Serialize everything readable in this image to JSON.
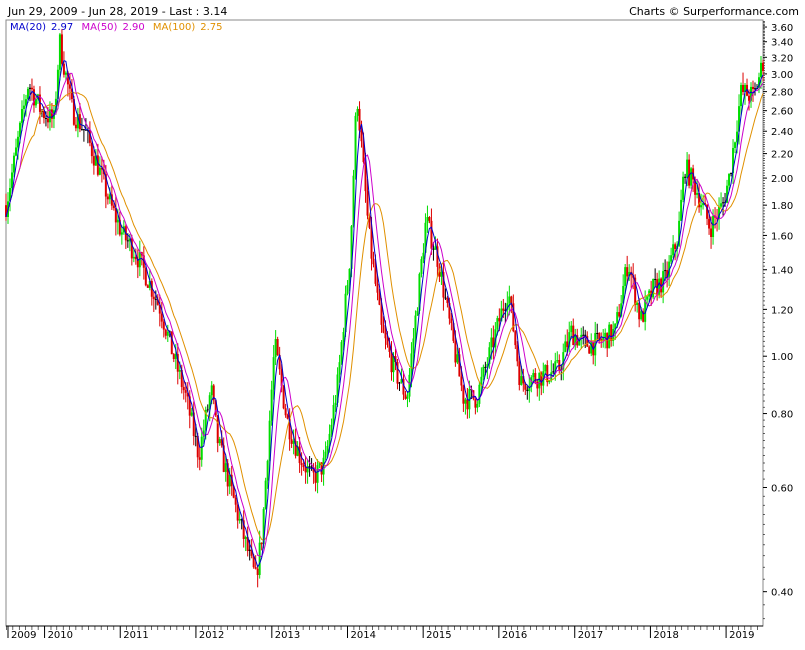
{
  "header": {
    "range_text": "Jun 29, 2009 - Jun 28, 2019 - Last : 3.14",
    "credit": "Charts © Surperformance.com"
  },
  "legend": [
    {
      "label": "MA(20)",
      "value": "2.97",
      "color": "#0000cc"
    },
    {
      "label": "MA(50)",
      "value": "2.90",
      "color": "#cc00cc"
    },
    {
      "label": "MA(100)",
      "value": "2.75",
      "color": "#e09000"
    }
  ],
  "chart_data": {
    "type": "candlestick",
    "title": "",
    "xlabel": "",
    "ylabel": "",
    "y_scale": "log",
    "ylim": [
      0.35,
      3.7
    ],
    "y_ticks": [
      0.4,
      0.6,
      0.8,
      1.0,
      1.2,
      1.4,
      1.6,
      1.8,
      2.0,
      2.2,
      2.4,
      2.6,
      2.8,
      3.0,
      3.2,
      3.4,
      3.6
    ],
    "y_tick_labels": [
      "0.40",
      "0.60",
      "0.80",
      "1.00",
      "1.20",
      "1.40",
      "1.60",
      "1.80",
      "2.00",
      "2.20",
      "2.40",
      "2.60",
      "2.80",
      "3.00",
      "3.20",
      "3.40",
      "3.60"
    ],
    "x_ticks": [
      "2009",
      "2010",
      "2011",
      "2012",
      "2013",
      "2014",
      "2015",
      "2016",
      "2017",
      "2018",
      "2019"
    ],
    "x_range": [
      "2009-06-29",
      "2019-06-28"
    ],
    "last": 3.14,
    "colors": {
      "up": "#00dd00",
      "down": "#dd0000",
      "neutral": "#000000",
      "grid": "#dddddd"
    },
    "price_path": [
      [
        "2009-06",
        1.8
      ],
      [
        "2009-08",
        2.2
      ],
      [
        "2009-10",
        2.9
      ],
      [
        "2009-12",
        2.6
      ],
      [
        "2010-02",
        2.5
      ],
      [
        "2010-03",
        3.4
      ],
      [
        "2010-05",
        2.6
      ],
      [
        "2010-07",
        2.4
      ],
      [
        "2010-09",
        2.1
      ],
      [
        "2010-11",
        1.8
      ],
      [
        "2011-01",
        1.6
      ],
      [
        "2011-03",
        1.5
      ],
      [
        "2011-05",
        1.35
      ],
      [
        "2011-07",
        1.2
      ],
      [
        "2011-09",
        1.0
      ],
      [
        "2011-11",
        0.85
      ],
      [
        "2012-01",
        0.68
      ],
      [
        "2012-03",
        0.88
      ],
      [
        "2012-04",
        0.72
      ],
      [
        "2012-06",
        0.6
      ],
      [
        "2012-08",
        0.5
      ],
      [
        "2012-10",
        0.42
      ],
      [
        "2012-11",
        0.5
      ],
      [
        "2013-01",
        1.05
      ],
      [
        "2013-03",
        0.78
      ],
      [
        "2013-05",
        0.68
      ],
      [
        "2013-07",
        0.62
      ],
      [
        "2013-09",
        0.66
      ],
      [
        "2013-11",
        0.9
      ],
      [
        "2014-01",
        1.5
      ],
      [
        "2014-02",
        2.8
      ],
      [
        "2014-04",
        1.6
      ],
      [
        "2014-06",
        1.1
      ],
      [
        "2014-08",
        0.95
      ],
      [
        "2014-10",
        0.85
      ],
      [
        "2015-01",
        1.7
      ],
      [
        "2015-03",
        1.45
      ],
      [
        "2015-05",
        1.1
      ],
      [
        "2015-07",
        0.85
      ],
      [
        "2015-09",
        0.85
      ],
      [
        "2015-11",
        1.0
      ],
      [
        "2016-02",
        1.3
      ],
      [
        "2016-04",
        0.9
      ],
      [
        "2016-06",
        0.92
      ],
      [
        "2016-08",
        0.93
      ],
      [
        "2016-10",
        0.95
      ],
      [
        "2016-12",
        1.1
      ],
      [
        "2017-02",
        1.05
      ],
      [
        "2017-04",
        1.05
      ],
      [
        "2017-07",
        1.1
      ],
      [
        "2017-09",
        1.45
      ],
      [
        "2017-11",
        1.15
      ],
      [
        "2018-01",
        1.3
      ],
      [
        "2018-03",
        1.35
      ],
      [
        "2018-05",
        1.6
      ],
      [
        "2018-06",
        2.1
      ],
      [
        "2018-08",
        1.9
      ],
      [
        "2018-10",
        1.65
      ],
      [
        "2018-12",
        1.8
      ],
      [
        "2019-01",
        2.0
      ],
      [
        "2019-03",
        2.8
      ],
      [
        "2019-05",
        2.75
      ],
      [
        "2019-06",
        3.14
      ]
    ]
  }
}
